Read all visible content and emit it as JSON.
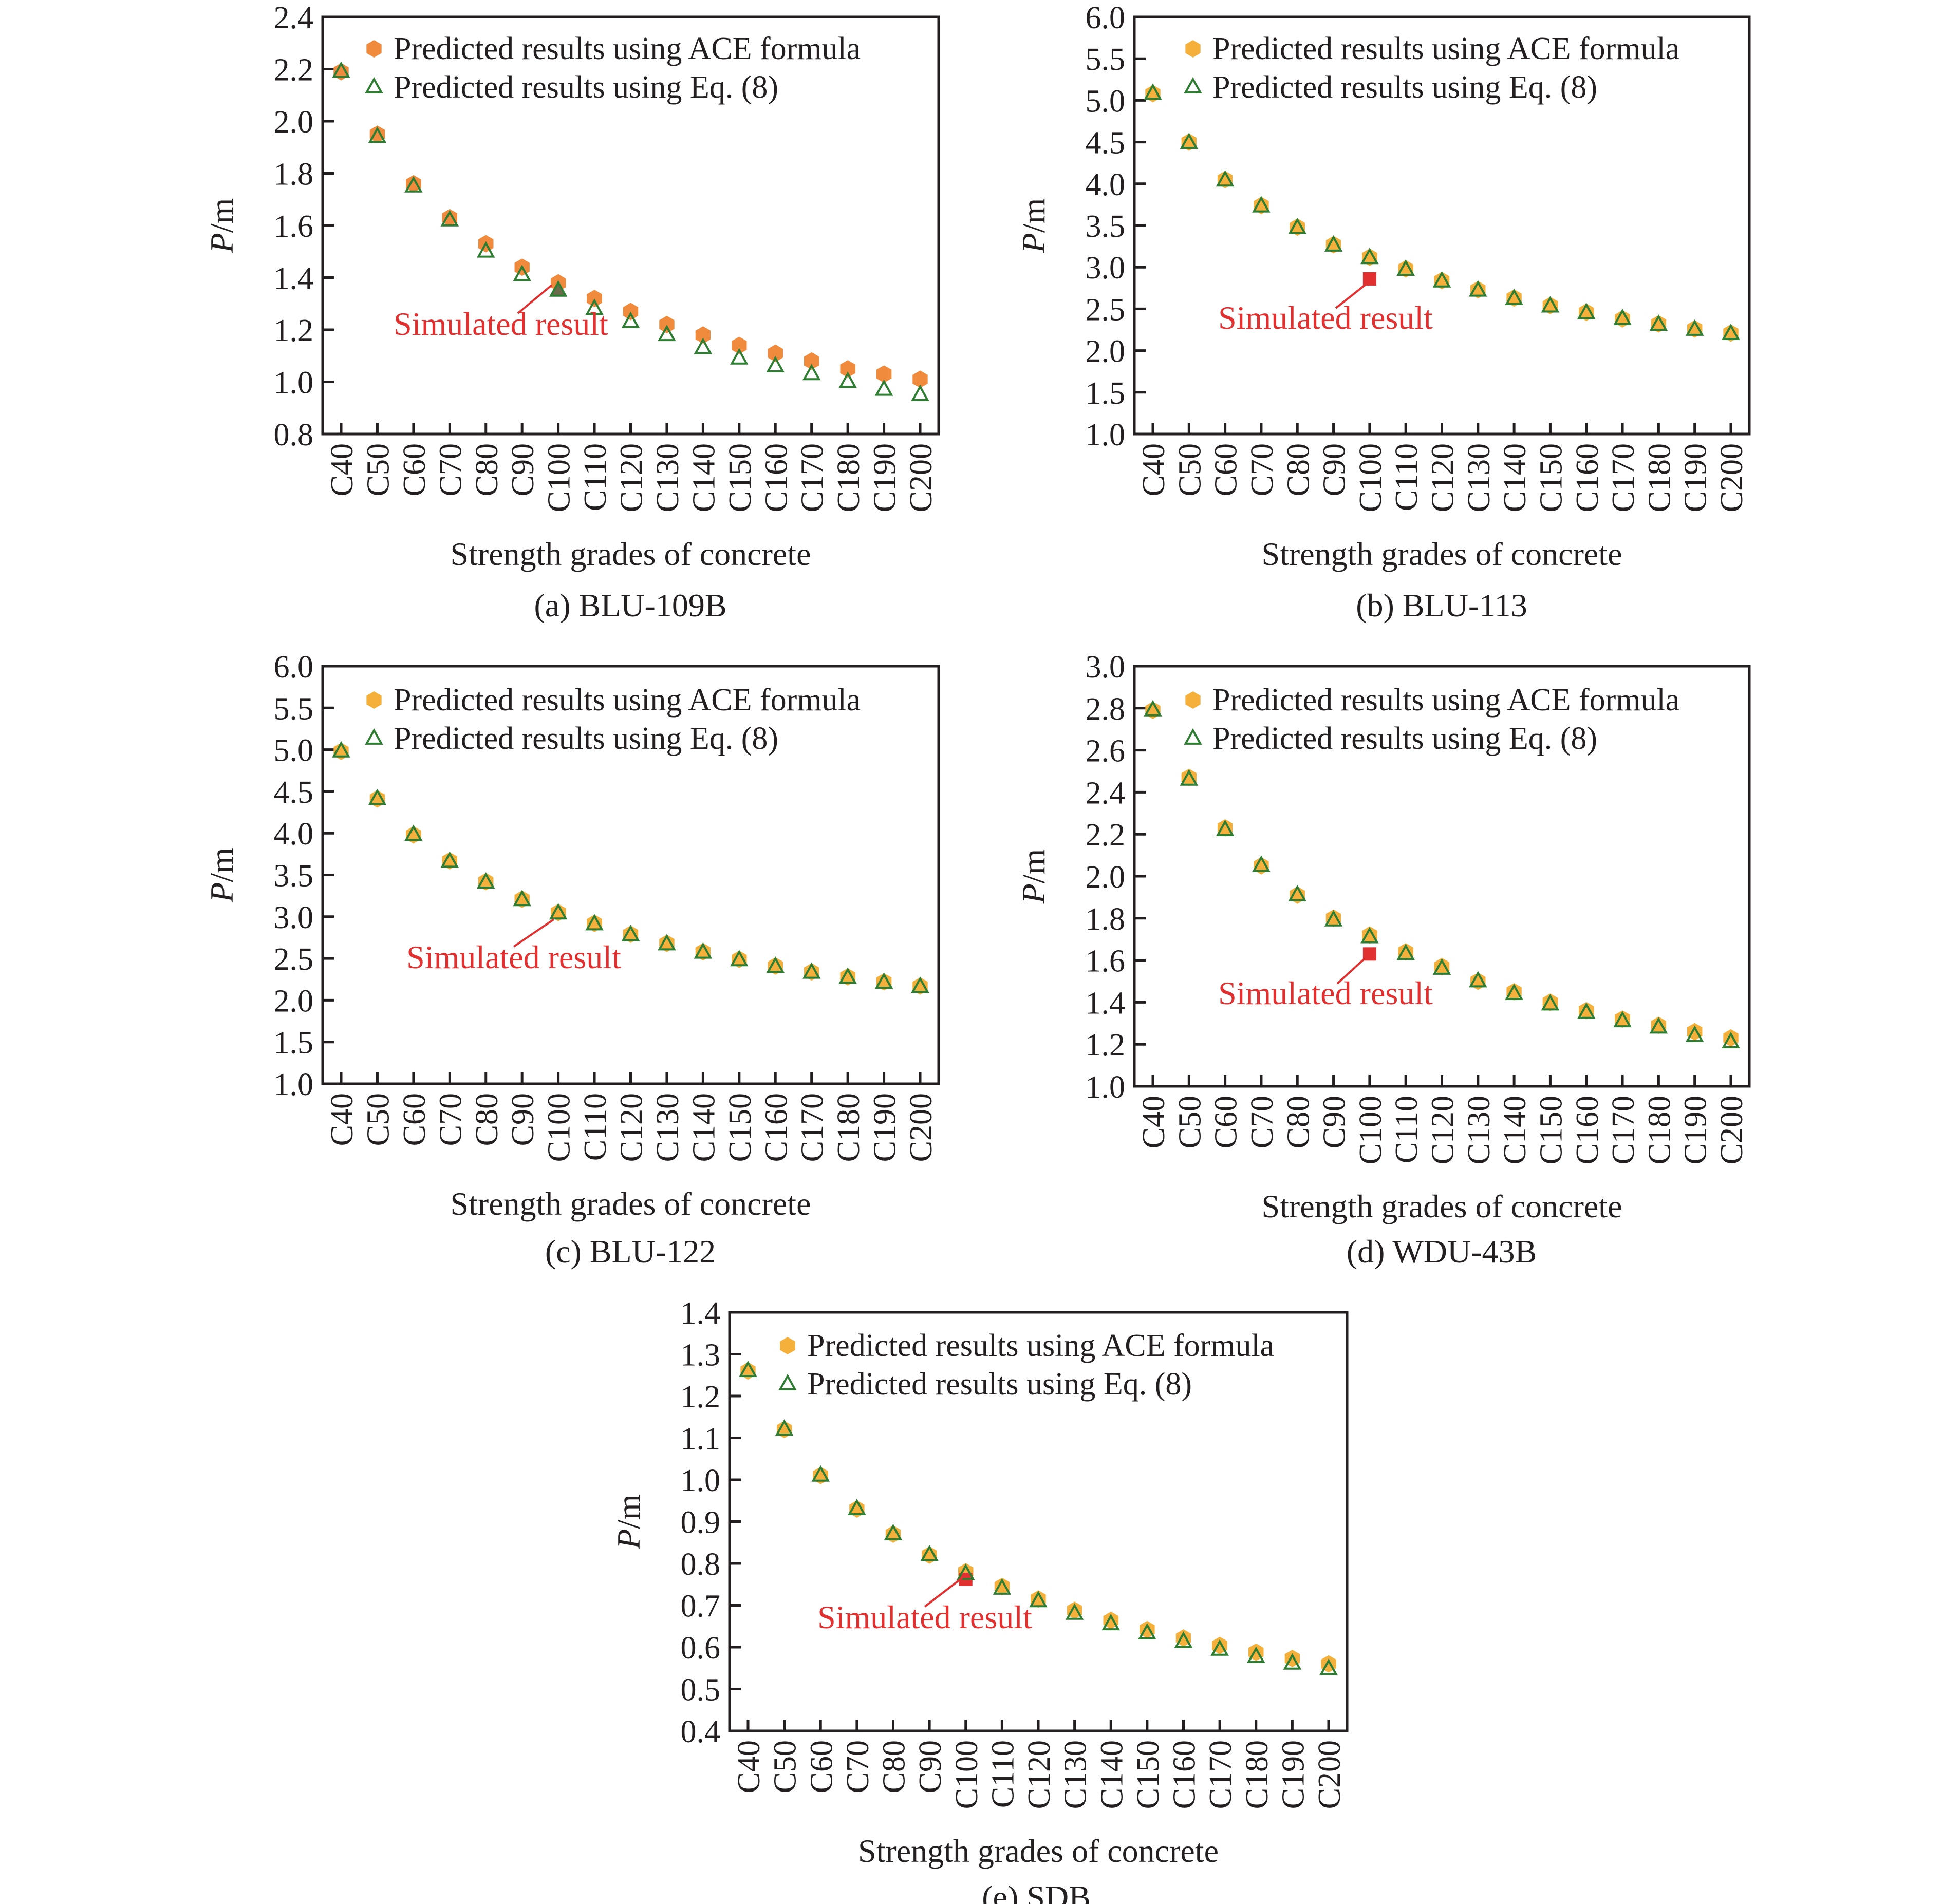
{
  "figure": {
    "x_axis_label": "Strength grades of concrete",
    "y_axis_label_italic": "P",
    "y_axis_label_unit": "/m",
    "legend_ace": "Predicted results using ACE formula",
    "legend_eq": "Predicted results using Eq. (8)",
    "annotation": "Simulated result",
    "colors": {
      "ace_panel_a": "#f08a3c",
      "ace_other": "#f4b03a",
      "eq_triangle": "#2e7d32",
      "simulated": "#e03030",
      "axis": "#231f20"
    }
  },
  "chart_data": [
    {
      "type": "scatter",
      "caption": "(a) BLU-109B",
      "categories": [
        "C40",
        "C50",
        "C60",
        "C70",
        "C80",
        "C90",
        "C100",
        "C110",
        "C120",
        "C130",
        "C140",
        "C150",
        "C160",
        "C170",
        "C180",
        "C190",
        "C200"
      ],
      "ylim": [
        0.8,
        2.4
      ],
      "yticks": [
        "0.8",
        "1.0",
        "1.2",
        "1.4",
        "1.6",
        "1.8",
        "2.0",
        "2.2",
        "2.4"
      ],
      "series": [
        {
          "name": "Predicted results using ACE formula",
          "marker": "hexagon",
          "values": [
            2.19,
            1.95,
            1.76,
            1.63,
            1.53,
            1.44,
            1.38,
            1.32,
            1.27,
            1.22,
            1.18,
            1.14,
            1.11,
            1.08,
            1.05,
            1.03,
            1.01
          ]
        },
        {
          "name": "Predicted results using Eq. (8)",
          "marker": "triangle",
          "values": [
            2.19,
            1.94,
            1.75,
            1.62,
            1.5,
            1.41,
            1.35,
            1.28,
            1.23,
            1.18,
            1.13,
            1.09,
            1.06,
            1.03,
            1.0,
            0.97,
            0.95
          ]
        }
      ],
      "simulated": {
        "category": "C100",
        "value": 1.35
      }
    },
    {
      "type": "scatter",
      "caption": "(b) BLU-113",
      "categories": [
        "C40",
        "C50",
        "C60",
        "C70",
        "C80",
        "C90",
        "C100",
        "C110",
        "C120",
        "C130",
        "C140",
        "C150",
        "C160",
        "C170",
        "C180",
        "C190",
        "C200"
      ],
      "ylim": [
        1.0,
        6.0
      ],
      "yticks": [
        "1.0",
        "1.5",
        "2.0",
        "2.5",
        "3.0",
        "3.5",
        "4.0",
        "4.5",
        "5.0",
        "5.5",
        "6.0"
      ],
      "series": [
        {
          "name": "Predicted results using ACE formula",
          "marker": "hexagon",
          "values": [
            5.08,
            4.5,
            4.05,
            3.74,
            3.48,
            3.27,
            3.12,
            2.98,
            2.84,
            2.73,
            2.63,
            2.54,
            2.46,
            2.38,
            2.32,
            2.26,
            2.21
          ]
        },
        {
          "name": "Predicted results using Eq. (8)",
          "marker": "triangle",
          "values": [
            5.08,
            4.49,
            4.04,
            3.73,
            3.47,
            3.26,
            3.11,
            2.97,
            2.83,
            2.72,
            2.62,
            2.53,
            2.45,
            2.38,
            2.31,
            2.25,
            2.2
          ]
        }
      ],
      "simulated": {
        "category": "C100",
        "value": 2.86
      }
    },
    {
      "type": "scatter",
      "caption": "(c) BLU-122",
      "categories": [
        "C40",
        "C50",
        "C60",
        "C70",
        "C80",
        "C90",
        "C100",
        "C110",
        "C120",
        "C130",
        "C140",
        "C150",
        "C160",
        "C170",
        "C180",
        "C190",
        "C200"
      ],
      "ylim": [
        1.0,
        6.0
      ],
      "yticks": [
        "1.0",
        "1.5",
        "2.0",
        "2.5",
        "3.0",
        "3.5",
        "4.0",
        "4.5",
        "5.0",
        "5.5",
        "6.0"
      ],
      "series": [
        {
          "name": "Predicted results using ACE formula",
          "marker": "hexagon",
          "values": [
            4.98,
            4.41,
            3.98,
            3.67,
            3.42,
            3.21,
            3.05,
            2.92,
            2.79,
            2.68,
            2.58,
            2.49,
            2.41,
            2.34,
            2.28,
            2.22,
            2.17
          ]
        },
        {
          "name": "Predicted results using Eq. (8)",
          "marker": "triangle",
          "values": [
            4.98,
            4.41,
            3.98,
            3.66,
            3.41,
            3.2,
            3.04,
            2.91,
            2.78,
            2.67,
            2.57,
            2.48,
            2.4,
            2.33,
            2.27,
            2.21,
            2.16
          ]
        }
      ],
      "simulated": {
        "category": "C100",
        "value": 3.0
      }
    },
    {
      "type": "scatter",
      "caption": "(d) WDU-43B",
      "categories": [
        "C40",
        "C50",
        "C60",
        "C70",
        "C80",
        "C90",
        "C100",
        "C110",
        "C120",
        "C130",
        "C140",
        "C150",
        "C160",
        "C170",
        "C180",
        "C190",
        "C200"
      ],
      "ylim": [
        1.0,
        3.0
      ],
      "yticks": [
        "1.0",
        "1.2",
        "1.4",
        "1.6",
        "1.8",
        "2.0",
        "2.2",
        "2.4",
        "2.6",
        "2.8",
        "3.0"
      ],
      "series": [
        {
          "name": "Predicted results using ACE formula",
          "marker": "hexagon",
          "values": [
            2.79,
            2.47,
            2.23,
            2.05,
            1.91,
            1.8,
            1.72,
            1.64,
            1.57,
            1.5,
            1.45,
            1.4,
            1.36,
            1.32,
            1.29,
            1.26,
            1.23
          ]
        },
        {
          "name": "Predicted results using Eq. (8)",
          "marker": "triangle",
          "values": [
            2.79,
            2.46,
            2.22,
            2.05,
            1.91,
            1.79,
            1.71,
            1.63,
            1.56,
            1.5,
            1.44,
            1.39,
            1.35,
            1.31,
            1.28,
            1.24,
            1.21
          ]
        }
      ],
      "simulated": {
        "category": "C100",
        "value": 1.63
      }
    },
    {
      "type": "scatter",
      "caption": "(e) SDB",
      "categories": [
        "C40",
        "C50",
        "C60",
        "C70",
        "C80",
        "C90",
        "C100",
        "C110",
        "C120",
        "C130",
        "C140",
        "C150",
        "C160",
        "C170",
        "C180",
        "C190",
        "C200"
      ],
      "ylim": [
        0.4,
        1.4
      ],
      "yticks": [
        "0.4",
        "0.5",
        "0.6",
        "0.7",
        "0.8",
        "0.9",
        "1.0",
        "1.1",
        "1.2",
        "1.3",
        "1.4"
      ],
      "series": [
        {
          "name": "Predicted results using ACE formula",
          "marker": "hexagon",
          "values": [
            1.26,
            1.12,
            1.01,
            0.93,
            0.87,
            0.82,
            0.78,
            0.745,
            0.715,
            0.688,
            0.664,
            0.642,
            0.622,
            0.604,
            0.588,
            0.573,
            0.56
          ]
        },
        {
          "name": "Predicted results using Eq. (8)",
          "marker": "triangle",
          "values": [
            1.26,
            1.12,
            1.01,
            0.93,
            0.87,
            0.82,
            0.775,
            0.74,
            0.71,
            0.68,
            0.655,
            0.633,
            0.613,
            0.594,
            0.577,
            0.561,
            0.548
          ]
        }
      ],
      "simulated": {
        "category": "C100",
        "value": 0.762
      }
    }
  ]
}
